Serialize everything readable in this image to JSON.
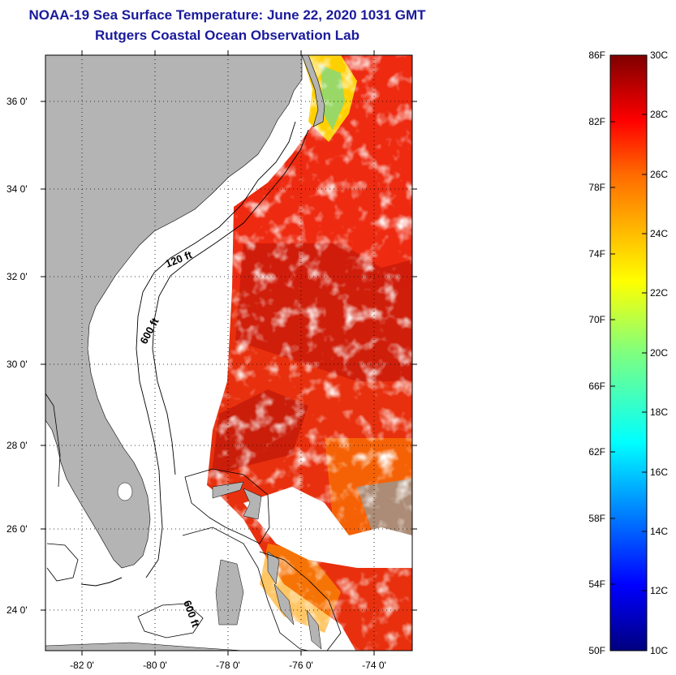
{
  "title": "NOAA-19 Sea Surface Temperature:  June 22, 2020 1031 GMT",
  "subtitle": "Rutgers Coastal Ocean Observation Lab",
  "map": {
    "lat_labels": [
      "36 0'",
      "34 0'",
      "32 0'",
      "30 0'",
      "28 0'",
      "26 0'",
      "24 0'"
    ],
    "lon_labels": [
      "-82 0'",
      "-80 0'",
      "-78 0'",
      "-76 0'",
      "-74 0'"
    ],
    "isobath_labels": [
      "120 ft",
      "600 ft",
      "600 ft"
    ],
    "land_color": "#b4b4b4"
  },
  "colorbar": {
    "fahrenheit_labels": [
      "86F",
      "82F",
      "78F",
      "74F",
      "70F",
      "66F",
      "62F",
      "58F",
      "54F",
      "50F"
    ],
    "celsius_labels": [
      "30C",
      "28C",
      "26C",
      "24C",
      "22C",
      "20C",
      "18C",
      "16C",
      "14C",
      "12C",
      "10C"
    ],
    "min_c": 10,
    "max_c": 30,
    "colormap": "jet"
  }
}
